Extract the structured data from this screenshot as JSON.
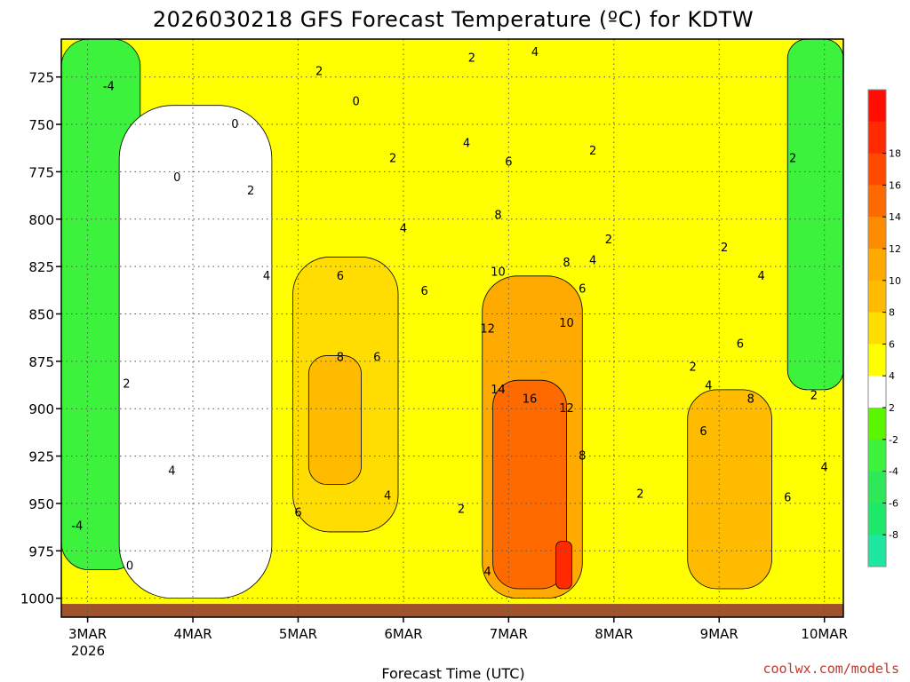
{
  "chart_data": {
    "type": "heatmap",
    "title": "2026030218 GFS Forecast Temperature (ºC) for KDTW",
    "xlabel": "Forecast Time (UTC)",
    "ylabel": "",
    "credit": "coolwx.com/models",
    "x_ticks": [
      "3MAR",
      "4MAR",
      "5MAR",
      "6MAR",
      "7MAR",
      "8MAR",
      "9MAR",
      "10MAR"
    ],
    "x_tick_year": "2026",
    "x_range_days": [
      0.0,
      7.43
    ],
    "y_ticks": [
      725,
      750,
      775,
      800,
      825,
      850,
      875,
      900,
      925,
      950,
      975,
      1000
    ],
    "y_range_hpa": [
      705,
      1010
    ],
    "colorbar": {
      "levels": [
        -8,
        -6,
        -4,
        -2,
        2,
        4,
        6,
        8,
        10,
        12,
        14,
        16,
        18
      ],
      "colors": [
        "#1ee8a0",
        "#1ee86a",
        "#2ee85a",
        "#3cf23c",
        "#5cf500",
        "#ffffff",
        "#ffff00",
        "#ffdd00",
        "#ffbb00",
        "#ffaa00",
        "#ff8c00",
        "#ff6a00",
        "#ff4a00",
        "#ff2a00",
        "#ff0d00"
      ]
    },
    "grid": true,
    "bands": [
      {
        "name": "cold-left",
        "class": "-4",
        "x0": 0.0,
        "x1": 0.75,
        "p_top": 705,
        "p_bot": 985
      },
      {
        "name": "above0-early",
        "class": "2",
        "x0": 0.55,
        "x1": 2.0,
        "p_top": 740,
        "p_bot": 1000
      },
      {
        "name": "warm-day5",
        "class": "6",
        "x0": 2.2,
        "x1": 3.2,
        "p_top": 820,
        "p_bot": 965
      },
      {
        "name": "warm-day5-core",
        "class": "8",
        "x0": 2.35,
        "x1": 2.85,
        "p_top": 872,
        "p_bot": 940
      },
      {
        "name": "warm-day7",
        "class": "10",
        "x0": 4.0,
        "x1": 4.95,
        "p_top": 830,
        "p_bot": 1000
      },
      {
        "name": "warm-day7-core",
        "class": "14",
        "x0": 4.1,
        "x1": 4.8,
        "p_top": 885,
        "p_bot": 995
      },
      {
        "name": "warm-day7-peak",
        "class": "18",
        "x0": 4.7,
        "x1": 4.85,
        "p_top": 970,
        "p_bot": 995
      },
      {
        "name": "warm-day9",
        "class": "8",
        "x0": 5.95,
        "x1": 6.75,
        "p_top": 890,
        "p_bot": 995
      },
      {
        "name": "cold-right",
        "class": "-4",
        "x0": 6.9,
        "x1": 7.43,
        "p_top": 705,
        "p_bot": 890
      }
    ],
    "contour_labels": [
      {
        "v": "-4",
        "d": 0.45,
        "p": 730
      },
      {
        "v": "-4",
        "d": 0.15,
        "p": 962
      },
      {
        "v": "0",
        "d": 1.1,
        "p": 778
      },
      {
        "v": "0",
        "d": 0.65,
        "p": 983
      },
      {
        "v": "0",
        "d": 1.65,
        "p": 750
      },
      {
        "v": "0",
        "d": 2.8,
        "p": 738
      },
      {
        "v": "2",
        "d": 0.62,
        "p": 887
      },
      {
        "v": "2",
        "d": 1.8,
        "p": 785
      },
      {
        "v": "2",
        "d": 2.45,
        "p": 722
      },
      {
        "v": "2",
        "d": 3.15,
        "p": 768
      },
      {
        "v": "2",
        "d": 3.9,
        "p": 715
      },
      {
        "v": "2",
        "d": 3.8,
        "p": 953
      },
      {
        "v": "2",
        "d": 5.5,
        "p": 945
      },
      {
        "v": "2",
        "d": 5.2,
        "p": 811
      },
      {
        "v": "2",
        "d": 5.05,
        "p": 764
      },
      {
        "v": "2",
        "d": 6.0,
        "p": 878
      },
      {
        "v": "2",
        "d": 6.3,
        "p": 815
      },
      {
        "v": "2",
        "d": 7.15,
        "p": 893
      },
      {
        "v": "2",
        "d": 6.95,
        "p": 768
      },
      {
        "v": "4",
        "d": 1.05,
        "p": 933
      },
      {
        "v": "4",
        "d": 1.95,
        "p": 830
      },
      {
        "v": "4",
        "d": 3.25,
        "p": 805
      },
      {
        "v": "4",
        "d": 3.85,
        "p": 760
      },
      {
        "v": "4",
        "d": 3.1,
        "p": 946
      },
      {
        "v": "4",
        "d": 4.05,
        "p": 986
      },
      {
        "v": "4",
        "d": 4.5,
        "p": 712
      },
      {
        "v": "4",
        "d": 5.05,
        "p": 822
      },
      {
        "v": "4",
        "d": 6.15,
        "p": 888
      },
      {
        "v": "4",
        "d": 6.65,
        "p": 830
      },
      {
        "v": "4",
        "d": 7.25,
        "p": 931
      },
      {
        "v": "6",
        "d": 2.65,
        "p": 830
      },
      {
        "v": "6",
        "d": 3.45,
        "p": 838
      },
      {
        "v": "6",
        "d": 3.0,
        "p": 873
      },
      {
        "v": "6",
        "d": 2.25,
        "p": 955
      },
      {
        "v": "6",
        "d": 4.25,
        "p": 770
      },
      {
        "v": "6",
        "d": 4.95,
        "p": 837
      },
      {
        "v": "6",
        "d": 6.1,
        "p": 912
      },
      {
        "v": "6",
        "d": 6.45,
        "p": 866
      },
      {
        "v": "6",
        "d": 6.9,
        "p": 947
      },
      {
        "v": "8",
        "d": 2.65,
        "p": 873
      },
      {
        "v": "8",
        "d": 4.15,
        "p": 798
      },
      {
        "v": "8",
        "d": 4.8,
        "p": 823
      },
      {
        "v": "8",
        "d": 4.95,
        "p": 925
      },
      {
        "v": "8",
        "d": 6.55,
        "p": 895
      },
      {
        "v": "10",
        "d": 4.15,
        "p": 828
      },
      {
        "v": "10",
        "d": 4.8,
        "p": 855
      },
      {
        "v": "12",
        "d": 4.05,
        "p": 858
      },
      {
        "v": "12",
        "d": 4.8,
        "p": 900
      },
      {
        "v": "14",
        "d": 4.15,
        "p": 890
      },
      {
        "v": "16",
        "d": 4.45,
        "p": 895
      }
    ]
  }
}
